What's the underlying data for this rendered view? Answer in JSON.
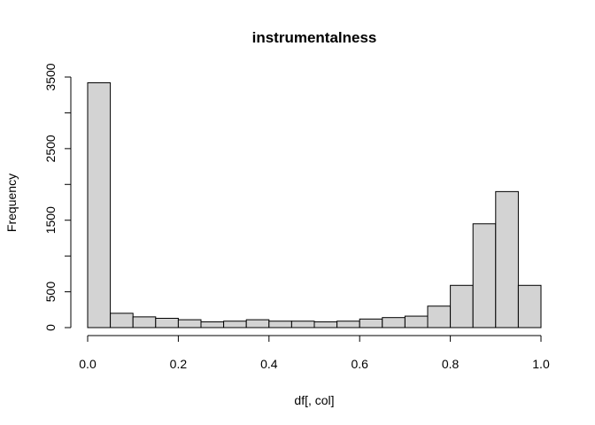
{
  "chart_data": {
    "type": "bar",
    "title": "instrumentalness",
    "xlabel": "df[, col]",
    "ylabel": "Frequency",
    "bins": [
      [
        0.0,
        0.05
      ],
      [
        0.05,
        0.1
      ],
      [
        0.1,
        0.15
      ],
      [
        0.15,
        0.2
      ],
      [
        0.2,
        0.25
      ],
      [
        0.25,
        0.3
      ],
      [
        0.3,
        0.35
      ],
      [
        0.35,
        0.4
      ],
      [
        0.4,
        0.45
      ],
      [
        0.45,
        0.5
      ],
      [
        0.5,
        0.55
      ],
      [
        0.55,
        0.6
      ],
      [
        0.6,
        0.65
      ],
      [
        0.65,
        0.7
      ],
      [
        0.7,
        0.75
      ],
      [
        0.75,
        0.8
      ],
      [
        0.8,
        0.85
      ],
      [
        0.85,
        0.9
      ],
      [
        0.9,
        0.95
      ],
      [
        0.95,
        1.0
      ]
    ],
    "values": [
      3420,
      200,
      150,
      130,
      110,
      80,
      90,
      110,
      90,
      90,
      80,
      90,
      120,
      140,
      160,
      300,
      590,
      1450,
      1900,
      590
    ],
    "xlim": [
      0,
      1
    ],
    "ylim": [
      0,
      3500
    ],
    "xticks": [
      0.0,
      0.2,
      0.4,
      0.6,
      0.8,
      1.0
    ],
    "xtick_labels": [
      "0.0",
      "0.2",
      "0.4",
      "0.6",
      "0.8",
      "1.0"
    ],
    "yticks": [
      0,
      500,
      1000,
      1500,
      2000,
      2500,
      3000,
      3500
    ],
    "ytick_labels": [
      "0",
      "500",
      "1500",
      "2500",
      "3500"
    ],
    "ytick_labeled": [
      0,
      500,
      1500,
      2500,
      3500
    ],
    "bar_fill": "#d3d3d3",
    "bar_stroke": "#000000",
    "grid": false,
    "legend": "none"
  }
}
